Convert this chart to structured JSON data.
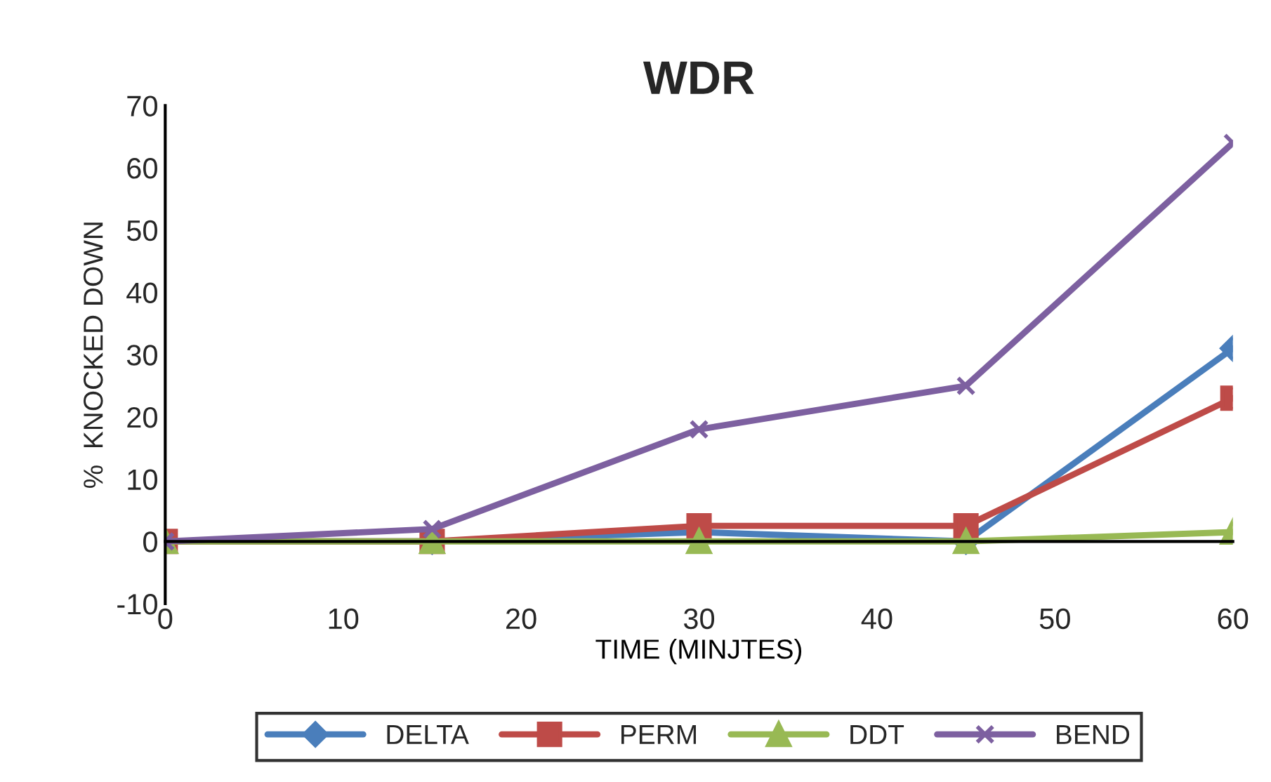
{
  "chart_data": {
    "type": "line",
    "title": "WDR",
    "xlabel": "TIME (MINJTES)",
    "ylabel": "%  KNOCKED DOWN",
    "x": [
      0,
      15,
      30,
      45,
      60
    ],
    "series": [
      {
        "name": "DELTA",
        "color": "#4a7ebb",
        "marker": "diamond",
        "values": [
          0,
          0,
          1.5,
          0,
          31
        ]
      },
      {
        "name": "PERM",
        "color": "#be4b48",
        "marker": "square",
        "values": [
          0,
          0,
          2.5,
          2.5,
          23
        ]
      },
      {
        "name": "DDT",
        "color": "#98b954",
        "marker": "triangle",
        "values": [
          0,
          0,
          0,
          0,
          1.5
        ]
      },
      {
        "name": "BEND",
        "color": "#7d60a0",
        "marker": "cross",
        "values": [
          0,
          2,
          18,
          25,
          64
        ]
      }
    ],
    "xlim": [
      0,
      60
    ],
    "xticks": [
      0,
      10,
      20,
      30,
      40,
      50,
      60
    ],
    "ylim": [
      -10,
      70
    ],
    "yticks": [
      -10,
      0,
      10,
      20,
      30,
      40,
      50,
      60,
      70
    ],
    "grid": false,
    "legend": "bottom",
    "line_style": "solid"
  }
}
